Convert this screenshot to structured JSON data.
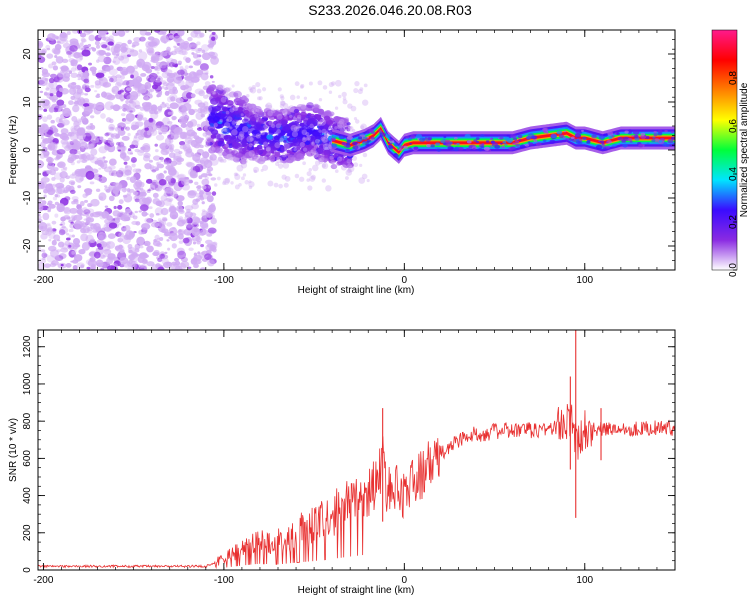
{
  "title": "S233.2026.046.20.08.R03",
  "chart_data": [
    {
      "type": "heatmap",
      "name": "spectrogram",
      "xlabel": "Height of straight line (km)",
      "ylabel": "Frequency (Hz)",
      "xlim": [
        -203,
        150
      ],
      "ylim": [
        -25,
        25
      ],
      "xticks": [
        -200,
        -100,
        0,
        100
      ],
      "yticks": [
        -20,
        -10,
        0,
        10,
        20
      ],
      "colorbar": {
        "label": "Normalized spectral amplitude",
        "range": [
          0,
          1
        ],
        "ticks": [
          "0.0",
          "0.2",
          "0.4",
          "0.6",
          "0.8"
        ],
        "tick_values": [
          0.0,
          0.2,
          0.4,
          0.6,
          0.8
        ],
        "colormap": [
          "#ffffff",
          "#8a2be2",
          "#3a0bff",
          "#00e5ff",
          "#00ff3a",
          "#ffff00",
          "#ff7f00",
          "#ff0000",
          "#ff1a8c"
        ]
      },
      "regions": [
        {
          "label": "diffuse noise",
          "x_range": [
            -203,
            -108
          ],
          "freq_range": [
            -25,
            25
          ],
          "amplitude": 0.1
        },
        {
          "label": "transition",
          "x_range": [
            -108,
            -30
          ],
          "freq_range": [
            -3,
            12
          ],
          "amplitude": 0.25
        },
        {
          "label": "signal band",
          "x_range": [
            -30,
            150
          ],
          "freq_range": [
            0,
            4
          ],
          "amplitude": 0.9
        }
      ],
      "signal_trace": {
        "x": [
          -108,
          -95,
          -80,
          -65,
          -50,
          -40,
          -30,
          -22,
          -17,
          -13,
          -9,
          -6,
          -3,
          0,
          5,
          10,
          20,
          40,
          60,
          70,
          80,
          90,
          95,
          100,
          105,
          110,
          120,
          130,
          150
        ],
        "freq": [
          7,
          5,
          3,
          3,
          4,
          2,
          1,
          2,
          3,
          4.5,
          1.5,
          0.5,
          -0.5,
          1,
          1.5,
          1.5,
          1.5,
          1.5,
          1.5,
          2.5,
          3,
          3.5,
          2.5,
          2.5,
          2,
          1.5,
          2.5,
          2.5,
          2.5
        ]
      }
    },
    {
      "type": "line",
      "name": "snr",
      "xlabel": "Height of straight line (km)",
      "ylabel": "SNR (10 * v/v)",
      "xlim": [
        -203,
        150
      ],
      "ylim": [
        0,
        1290
      ],
      "xticks": [
        -200,
        -100,
        0,
        100
      ],
      "yticks": [
        0,
        200,
        400,
        600,
        800,
        1000,
        1200
      ],
      "color": "#e83030",
      "series": [
        {
          "name": "SNR",
          "x": [
            -203,
            -150,
            -110,
            -100,
            -90,
            -80,
            -70,
            -60,
            -50,
            -40,
            -30,
            -20,
            -15,
            -12,
            -10,
            -5,
            0,
            10,
            20,
            30,
            40,
            50,
            60,
            70,
            80,
            88,
            92,
            94,
            96,
            98,
            100,
            105,
            110,
            120,
            130,
            140,
            150
          ],
          "y": [
            20,
            20,
            20,
            60,
            120,
            170,
            150,
            200,
            240,
            300,
            360,
            420,
            480,
            600,
            450,
            430,
            420,
            520,
            620,
            700,
            730,
            745,
            750,
            750,
            760,
            780,
            800,
            760,
            650,
            740,
            760,
            760,
            755,
            760,
            760,
            765,
            760
          ]
        }
      ],
      "spikes": [
        {
          "x": -12,
          "low": 260,
          "high": 870
        },
        {
          "x": 92,
          "low": 540,
          "high": 1040
        },
        {
          "x": 95,
          "low": 280,
          "high": 1290
        },
        {
          "x": 109,
          "low": 590,
          "high": 870
        }
      ]
    }
  ]
}
